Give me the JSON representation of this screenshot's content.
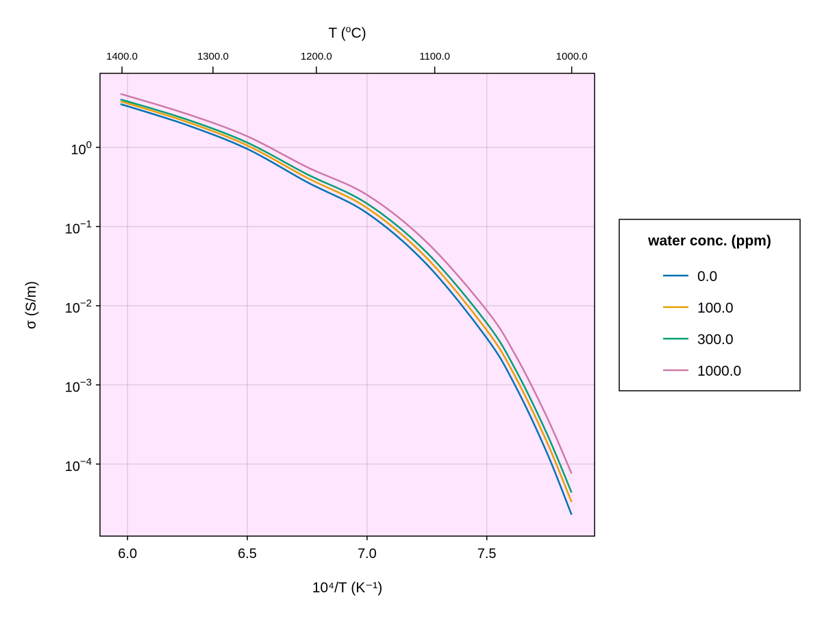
{
  "chart_data": {
    "type": "line",
    "xlabel": "10⁴/T (K⁻¹)",
    "ylabel": "σ (S/m)",
    "x2label_base": "T (",
    "x2label_sup": "o",
    "x2label_end": "C)",
    "yscale": "log10",
    "xlim": [
      5.885,
      7.95
    ],
    "ylim_log10": [
      -4.91,
      0.935
    ],
    "grid": true,
    "background": "#ffe6ff",
    "xticks": [
      {
        "value": 6.0,
        "label": "6.0"
      },
      {
        "value": 6.5,
        "label": "6.5"
      },
      {
        "value": 7.0,
        "label": "7.0"
      },
      {
        "value": 7.5,
        "label": "7.5"
      }
    ],
    "yticks": [
      {
        "exp": 0,
        "base": "10",
        "sup": "0"
      },
      {
        "exp": -1,
        "base": "10",
        "sup": "−1"
      },
      {
        "exp": -2,
        "base": "10",
        "sup": "−2"
      },
      {
        "exp": -3,
        "base": "10",
        "sup": "−3"
      },
      {
        "exp": -4,
        "base": "10",
        "sup": "−4"
      }
    ],
    "top_ticks": [
      {
        "celsius": 1400,
        "label": "1400.0"
      },
      {
        "celsius": 1300,
        "label": "1300.0"
      },
      {
        "celsius": 1200,
        "label": "1200.0"
      },
      {
        "celsius": 1100,
        "label": "1100.0"
      },
      {
        "celsius": 1000,
        "label": "1000.0"
      }
    ],
    "x": [
      5.977,
      6.0,
      6.25,
      6.5,
      6.75,
      7.0,
      7.25,
      7.5,
      7.617,
      7.75,
      7.854
    ],
    "series": [
      {
        "name": "0.0",
        "color": "#0072b2",
        "log10_sigma": [
          0.537,
          0.52,
          0.28,
          -0.02,
          -0.44,
          -0.83,
          -1.48,
          -2.41,
          -3.0,
          -3.85,
          -4.64
        ]
      },
      {
        "name": "100.0",
        "color": "#e69f00",
        "log10_sigma": [
          0.571,
          0.555,
          0.32,
          0.025,
          -0.385,
          -0.765,
          -1.4,
          -2.31,
          -2.885,
          -3.715,
          -4.48
        ]
      },
      {
        "name": "300.0",
        "color": "#009e73",
        "log10_sigma": [
          0.597,
          0.58,
          0.35,
          0.06,
          -0.34,
          -0.71,
          -1.33,
          -2.22,
          -2.79,
          -3.61,
          -4.36
        ]
      },
      {
        "name": "1000.0",
        "color": "#cc79a7",
        "log10_sigma": [
          0.667,
          0.65,
          0.42,
          0.14,
          -0.25,
          -0.6,
          -1.2,
          -2.06,
          -2.61,
          -3.4,
          -4.12
        ]
      }
    ],
    "legend": {
      "title": "water conc. (ppm)",
      "placement": "right"
    }
  }
}
